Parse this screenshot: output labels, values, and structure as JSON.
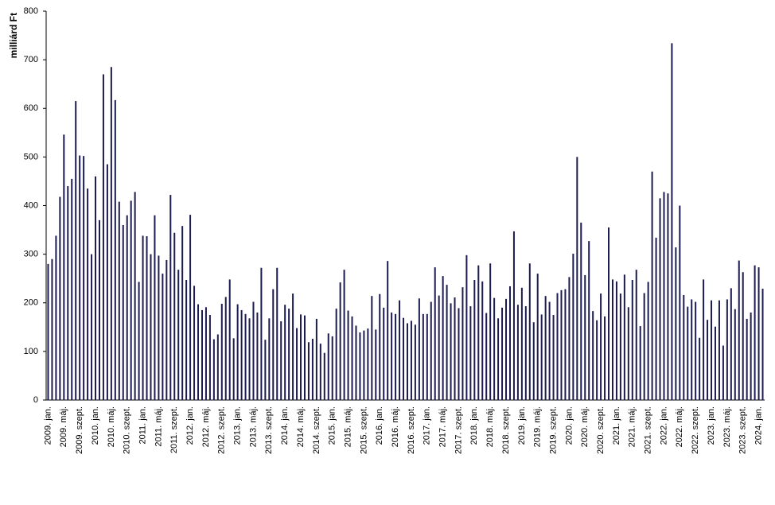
{
  "chart_data": {
    "type": "bar",
    "y_label": "milliárd Ft",
    "color": "#1b1b4f",
    "ylim": [
      0,
      800
    ],
    "yticks": [
      0,
      100,
      200,
      300,
      400,
      500,
      600,
      700,
      800
    ],
    "grid": false,
    "categories": [
      "2009. jan.",
      null,
      null,
      null,
      "2009. máj.",
      null,
      null,
      null,
      "2009. szept.",
      null,
      null,
      null,
      "2010. jan.",
      null,
      null,
      null,
      "2010. máj.",
      null,
      null,
      null,
      "2010. szept.",
      null,
      null,
      null,
      "2011. jan.",
      null,
      null,
      null,
      "2011. máj.",
      null,
      null,
      null,
      "2011. szept.",
      null,
      null,
      null,
      "2012. jan.",
      null,
      null,
      null,
      "2012. máj.",
      null,
      null,
      null,
      "2012. szept.",
      null,
      null,
      null,
      "2013. jan.",
      null,
      null,
      null,
      "2013. máj.",
      null,
      null,
      null,
      "2013. szept.",
      null,
      null,
      null,
      "2014. jan.",
      null,
      null,
      null,
      "2014. máj.",
      null,
      null,
      null,
      "2014. szept.",
      null,
      null,
      null,
      "2015. jan.",
      null,
      null,
      null,
      "2015. máj.",
      null,
      null,
      null,
      "2015. szept.",
      null,
      null,
      null,
      "2016. jan.",
      null,
      null,
      null,
      "2016. máj.",
      null,
      null,
      null,
      "2016. szept.",
      null,
      null,
      null,
      "2017. jan.",
      null,
      null,
      null,
      "2017. máj.",
      null,
      null,
      null,
      "2017. szept.",
      null,
      null,
      null,
      "2018. jan.",
      null,
      null,
      null,
      "2018. máj.",
      null,
      null,
      null,
      "2018. szept.",
      null,
      null,
      null,
      "2019. jan.",
      null,
      null,
      null,
      "2019. máj.",
      null,
      null,
      null,
      "2019. szept.",
      null,
      null,
      null,
      "2020. jan.",
      null,
      null,
      null,
      "2020. máj.",
      null,
      null,
      null,
      "2020. szept.",
      null,
      null,
      null,
      "2021. jan.",
      null,
      null,
      null,
      "2021. máj.",
      null,
      null,
      null,
      "2021. szept.",
      null,
      null,
      null,
      "2022. jan.",
      null,
      null,
      null,
      "2022. máj.",
      null,
      null,
      null,
      "2022. szept.",
      null,
      null,
      null,
      "2023. jan.",
      null,
      null,
      null,
      "2023. máj.",
      null,
      null,
      null,
      "2023. szept.",
      null,
      null,
      null,
      "2024. jan.",
      null
    ],
    "values": [
      280,
      290,
      338,
      418,
      546,
      440,
      455,
      615,
      503,
      502,
      435,
      300,
      460,
      370,
      670,
      485,
      685,
      617,
      408,
      360,
      380,
      410,
      428,
      243,
      338,
      337,
      300,
      380,
      297,
      260,
      288,
      422,
      344,
      268,
      358,
      247,
      381,
      235,
      197,
      185,
      191,
      175,
      125,
      135,
      198,
      212,
      248,
      127,
      197,
      185,
      177,
      168,
      202,
      180,
      272,
      124,
      168,
      228,
      272,
      162,
      196,
      188,
      219,
      148,
      176,
      174,
      119,
      126,
      167,
      116,
      97,
      137,
      131,
      188,
      242,
      268,
      184,
      172,
      153,
      139,
      143,
      147,
      214,
      145,
      218,
      190,
      286,
      180,
      177,
      205,
      169,
      158,
      163,
      155,
      209,
      177,
      177,
      202,
      273,
      215,
      255,
      237,
      199,
      211,
      189,
      232,
      298,
      193,
      247,
      277,
      244,
      179,
      281,
      210,
      168,
      190,
      208,
      234,
      347,
      196,
      231,
      193,
      281,
      160,
      260,
      176,
      214,
      202,
      175,
      220,
      226,
      228,
      253,
      301,
      500,
      365,
      257,
      327,
      183,
      164,
      219,
      172,
      355,
      248,
      244,
      219,
      258,
      191,
      247,
      268,
      152,
      220,
      243,
      470,
      334,
      415,
      428,
      425,
      734,
      314,
      400,
      216,
      192,
      207,
      202,
      128,
      248,
      165,
      205,
      151,
      205,
      112,
      207,
      230,
      187,
      287,
      263,
      167,
      180,
      277,
      273,
      229
    ]
  }
}
